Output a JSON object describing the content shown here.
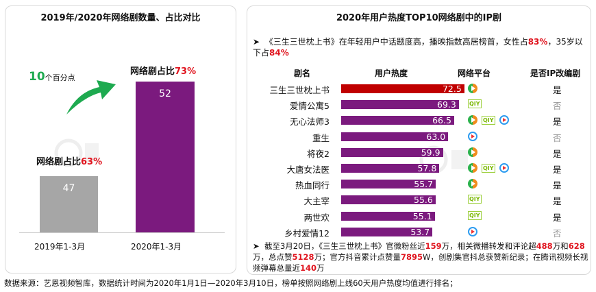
{
  "left": {
    "title": "2019年/2020年网络剧数量、占比对比",
    "arrow_number": "10",
    "arrow_text": "个百分点",
    "chart_data": {
      "type": "bar",
      "categories": [
        "2019年1-3月",
        "2020年1-3月"
      ],
      "values": [
        47,
        52
      ],
      "annotations": [
        {
          "label": "网络剧占比",
          "value": "63%"
        },
        {
          "label": "网络剧占比",
          "value": "73%"
        }
      ]
    },
    "colors": {
      "bar2019": "#a6a6a6",
      "bar2020": "#7b1a7e",
      "arrow": "#1eaa50"
    }
  },
  "right": {
    "title": "2020年用户热度TOP10网络剧中的IP剧",
    "bullet1": {
      "a": "《三生三世枕上书》在年轻用户中话题度高，播映指数高居榜首，女性占",
      "b": "83%",
      "c": "，35岁以下占",
      "d": "84%"
    },
    "headers": [
      "剧名",
      "用户热度",
      "网络平台",
      "是否IP改编剧"
    ],
    "chart_data": {
      "type": "bar",
      "orientation": "horizontal",
      "categories": [
        "三生三世枕上书",
        "爱情公寓5",
        "无心法师3",
        "重生",
        "将夜2",
        "大唐女法医",
        "热血同行",
        "大主宰",
        "两世欢",
        "乡村爱情12"
      ],
      "values": [
        72.5,
        69.3,
        66.5,
        63.0,
        59.9,
        57.8,
        55.7,
        55.6,
        55.1,
        53.7
      ]
    },
    "value_labels": [
      "72.5",
      "69.3",
      "66.5",
      "63.0",
      "59.9",
      "57.8",
      "55.7",
      "55.6",
      "55.1",
      "53.7"
    ],
    "platforms": [
      [
        "tencent"
      ],
      [
        "iqiyi"
      ],
      [
        "tencent",
        "iqiyi",
        "youku"
      ],
      [
        "youku"
      ],
      [
        "tencent"
      ],
      [
        "tencent",
        "iqiyi",
        "youku"
      ],
      [
        "tencent"
      ],
      [
        "iqiyi"
      ],
      [
        "iqiyi"
      ],
      [
        "youku"
      ]
    ],
    "ip": [
      "是",
      "否",
      "是",
      "否",
      "是",
      "是",
      "是",
      "是",
      "是",
      "否"
    ],
    "colors": {
      "top": "#c00000",
      "bar": "#7b1a7e"
    },
    "bullet2": [
      "截至3月20日，《三生三世枕上书》官微粉丝近",
      "159",
      "万，相关微播转发和评论超",
      "488",
      "万和",
      "628",
      "万，总点赞",
      "5128",
      "万；官方抖音累计点赞量",
      "7895",
      "W，创剧集官抖总获赞新纪录；在腾讯视频长视频弹幕总量近",
      "140",
      "万"
    ]
  },
  "watermark": {
    "cn": "艺恩",
    "en": "endata"
  },
  "footer": "数据来源：艺恩视频智库，数据统计时间为2020年1月1日—2020年3月10日，榜单按照网络剧上线60天用户热度均值进行排名；"
}
